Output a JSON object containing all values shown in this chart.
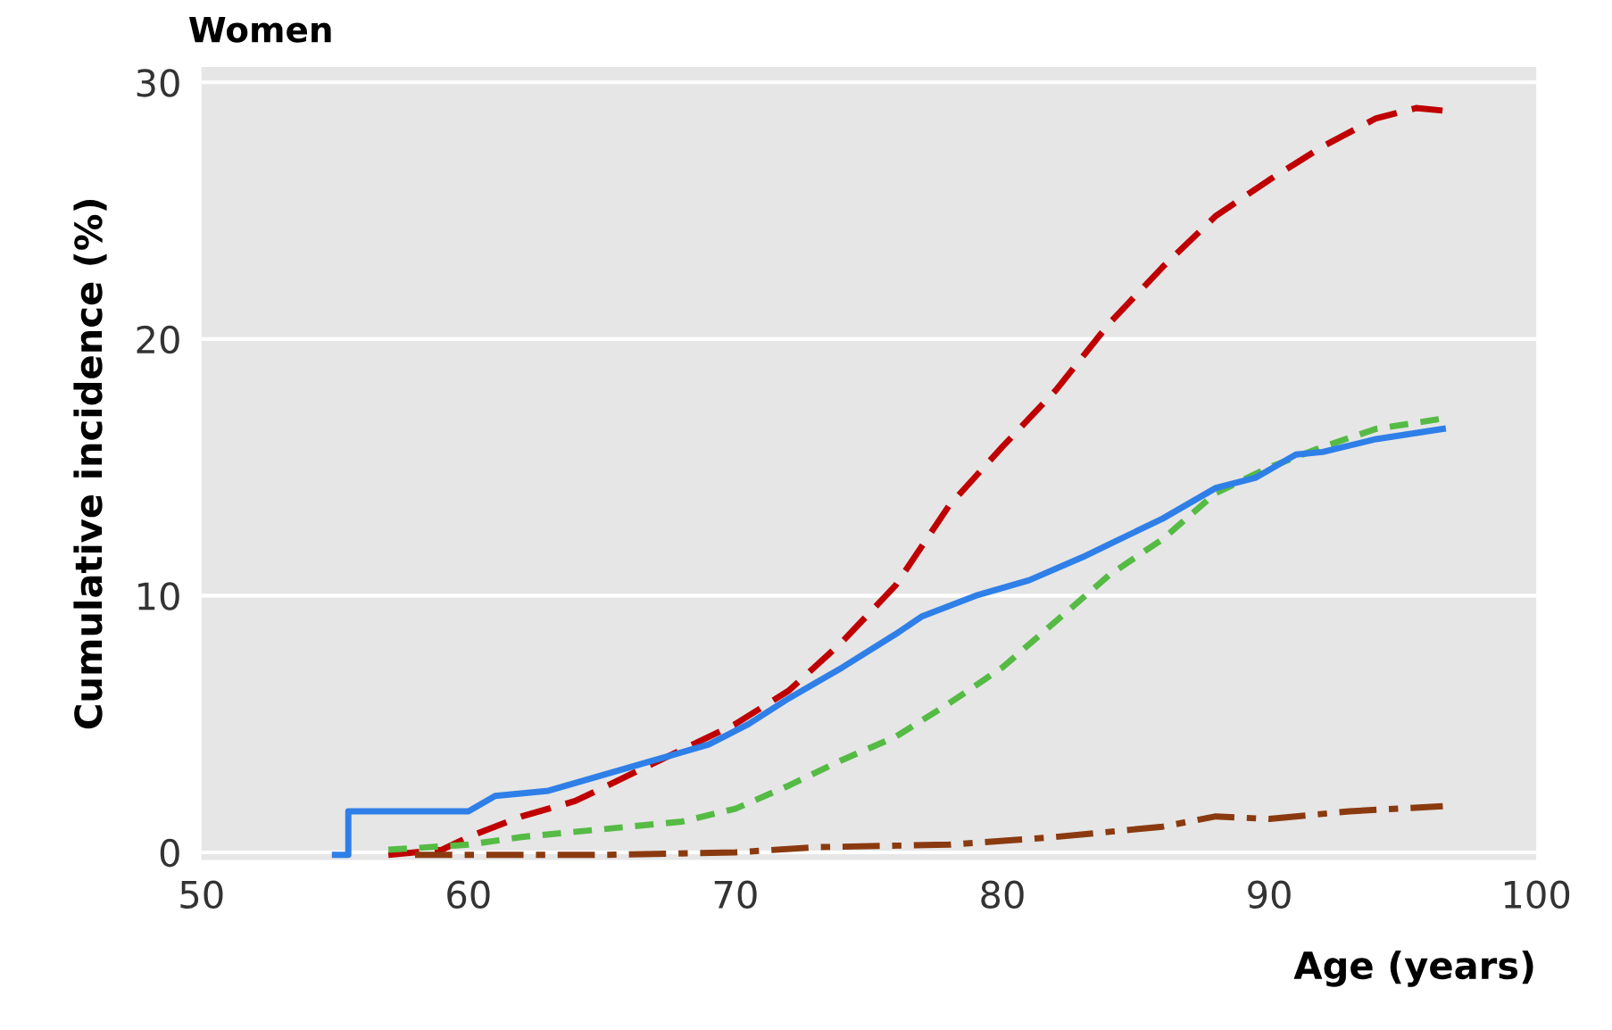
{
  "chart_data": {
    "type": "line",
    "title": "Women",
    "xlabel": "Age (years)",
    "ylabel": "Cumulative incidence (%)",
    "xlim": [
      50,
      100
    ],
    "xticks": [
      50,
      60,
      70,
      80,
      90,
      100
    ],
    "ylim": [
      -0.3,
      30.6
    ],
    "yticks": [
      0,
      10,
      20,
      30
    ],
    "grid": "y",
    "legend": false,
    "series": [
      {
        "color": "#c00000",
        "line_style": "dashed",
        "x": [
          57,
          59,
          60,
          62,
          64,
          66,
          68,
          70,
          72,
          74,
          76,
          78,
          80,
          82,
          84,
          86,
          88,
          90,
          92,
          94,
          95.5,
          96.5
        ],
        "values": [
          -0.1,
          0.1,
          0.6,
          1.4,
          2,
          3,
          4,
          5,
          6.3,
          8.2,
          10.4,
          13.5,
          15.8,
          18,
          20.6,
          22.8,
          24.8,
          26.2,
          27.5,
          28.6,
          29,
          28.9
        ]
      },
      {
        "color": "#55bb44",
        "line_style": "dotted",
        "x": [
          57,
          60,
          62,
          65,
          68,
          70,
          72,
          74,
          76,
          78,
          80,
          82,
          84,
          86,
          88,
          90,
          92,
          94,
          96.5
        ],
        "values": [
          0.1,
          0.3,
          0.6,
          0.9,
          1.2,
          1.7,
          2.6,
          3.6,
          4.5,
          5.8,
          7.2,
          9,
          10.8,
          12.2,
          14,
          15,
          15.8,
          16.5,
          16.9
        ]
      },
      {
        "color": "#2f7fe8",
        "line_style": "solid",
        "x": [
          55,
          55.5,
          55.5,
          60,
          61,
          63,
          65,
          67,
          69,
          70.5,
          72,
          74,
          76,
          77,
          79,
          81,
          83,
          84,
          86,
          88,
          89.5,
          91,
          92,
          94,
          96.5
        ],
        "values": [
          -0.1,
          -0.1,
          1.6,
          1.6,
          2.2,
          2.4,
          3,
          3.6,
          4.2,
          5,
          6,
          7.2,
          8.5,
          9.2,
          10,
          10.6,
          11.5,
          12,
          13,
          14.2,
          14.6,
          15.5,
          15.6,
          16.1,
          16.5
        ]
      },
      {
        "color": "#8b3a10",
        "line_style": "dashdot",
        "x": [
          58,
          65,
          70,
          73,
          78,
          82,
          86,
          88,
          90,
          93,
          96.5
        ],
        "values": [
          -0.1,
          -0.1,
          0,
          0.2,
          0.3,
          0.6,
          1.0,
          1.4,
          1.3,
          1.6,
          1.8
        ]
      }
    ]
  }
}
